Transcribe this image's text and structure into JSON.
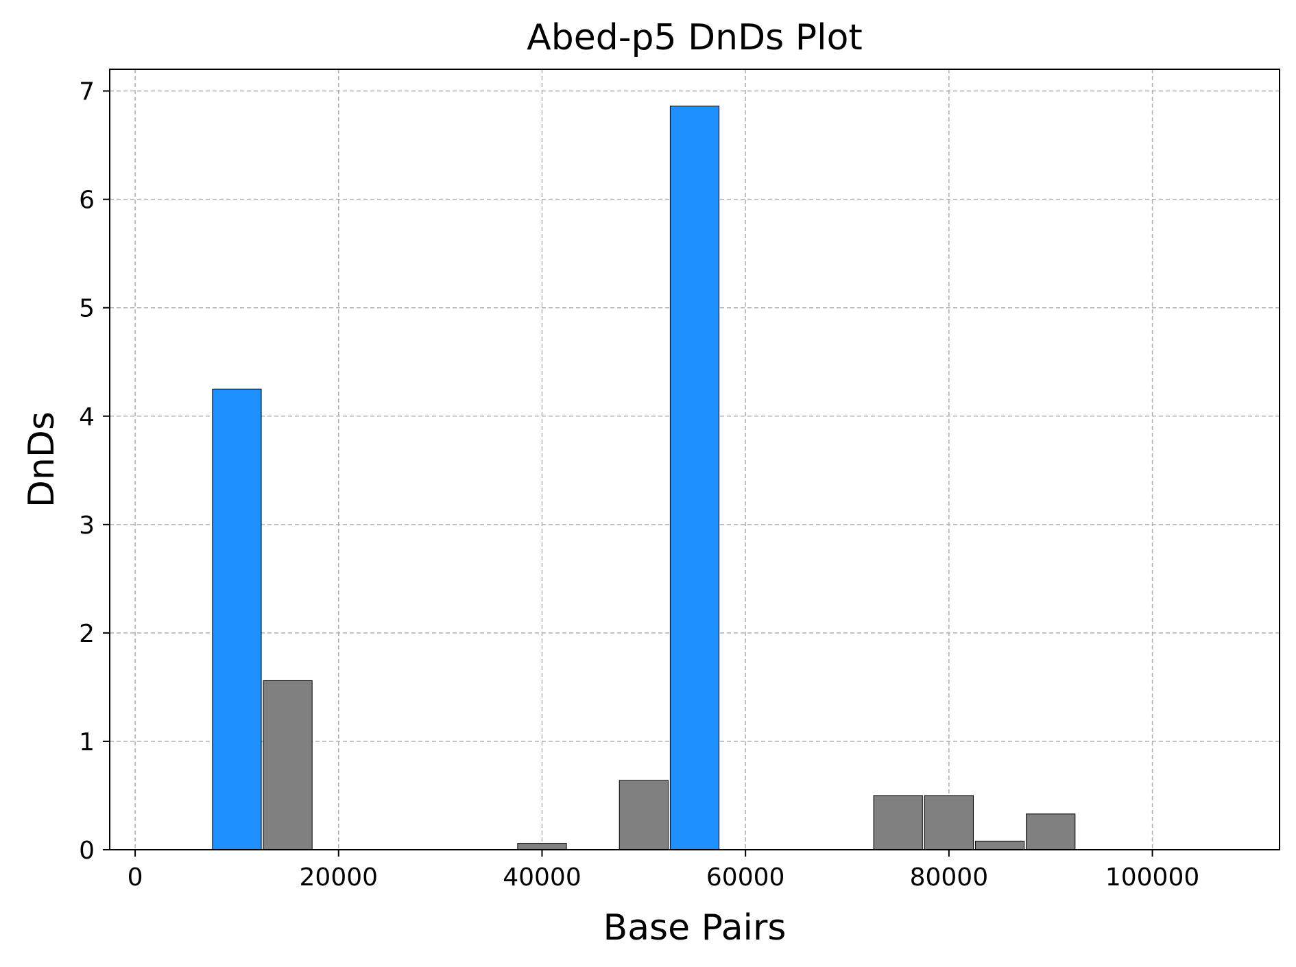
{
  "chart_data": {
    "type": "bar",
    "title": "Abed-p5 DnDs Plot",
    "xlabel": "Base Pairs",
    "ylabel": "DnDs",
    "xlim": [
      -2500,
      112500
    ],
    "ylim": [
      0,
      7.2
    ],
    "x_ticks": [
      0,
      20000,
      40000,
      60000,
      80000,
      100000
    ],
    "y_ticks": [
      0,
      1,
      2,
      3,
      4,
      5,
      6,
      7
    ],
    "grid": true,
    "bar_width": 4800,
    "colors": {
      "highlight": "#1e90ff",
      "normal": "#808080",
      "edge": "#000000",
      "grid": "#b0b0b0"
    },
    "bars": [
      {
        "x": 10000,
        "value": 4.25,
        "highlight": true
      },
      {
        "x": 15000,
        "value": 1.56,
        "highlight": false
      },
      {
        "x": 40000,
        "value": 0.06,
        "highlight": false
      },
      {
        "x": 50000,
        "value": 0.64,
        "highlight": false
      },
      {
        "x": 55000,
        "value": 6.86,
        "highlight": true
      },
      {
        "x": 75000,
        "value": 0.5,
        "highlight": false
      },
      {
        "x": 80000,
        "value": 0.5,
        "highlight": false
      },
      {
        "x": 85000,
        "value": 0.08,
        "highlight": false
      },
      {
        "x": 90000,
        "value": 0.33,
        "highlight": false
      }
    ]
  }
}
